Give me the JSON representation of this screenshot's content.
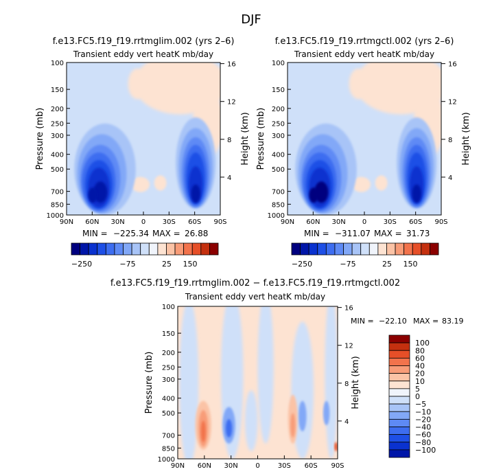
{
  "page": {
    "title": "DJF"
  },
  "colors": {
    "cold": [
      "#00007f",
      "#0016a8",
      "#0a32cf",
      "#1e4fe6",
      "#3d6df0",
      "#5e8af5",
      "#82a8f7",
      "#a8c4f7",
      "#cfe0f9"
    ],
    "zero": "#f0f4fb",
    "warm": [
      "#fde3d2",
      "#fbc3a6",
      "#f89c78",
      "#f2734c",
      "#e64f28",
      "#c4300f",
      "#8b0000"
    ]
  },
  "chart_data": [
    {
      "type": "heatmap",
      "id": "panel1",
      "title": "f.e13.FC5.f19_f19.rrtmglim.002 (yrs 2–6)",
      "subtitle": "Transient eddy vert heatK mb/day",
      "ylabel": "Pressure (mb)",
      "ylabel_right": "Height (km)",
      "x_ticks": [
        "90N",
        "60N",
        "30N",
        "0",
        "30S",
        "60S",
        "90S"
      ],
      "y_ticks": [
        "100",
        "150",
        "200",
        "250",
        "300",
        "400",
        "500",
        "700",
        "850",
        "1000"
      ],
      "y_right_ticks": [
        "16",
        "12",
        "8",
        "4"
      ],
      "stats": {
        "min_label": "MIN =",
        "min": "−225.34",
        "max_label": "MAX =",
        "max": "26.88"
      },
      "colorbar_labels": [
        "−250",
        "−75",
        "25",
        "150"
      ]
    },
    {
      "type": "heatmap",
      "id": "panel2",
      "title": "f.e13.FC5.f19_f19.rrtmgctl.002 (yrs 2–6)",
      "subtitle": "Transient eddy vert heatK mb/day",
      "ylabel": "Pressure (mb)",
      "ylabel_right": "Height (km)",
      "x_ticks": [
        "90N",
        "60N",
        "30N",
        "0",
        "30S",
        "60S",
        "90S"
      ],
      "y_ticks": [
        "100",
        "150",
        "200",
        "250",
        "300",
        "400",
        "500",
        "700",
        "850",
        "1000"
      ],
      "y_right_ticks": [
        "16",
        "12",
        "8",
        "4"
      ],
      "stats": {
        "min_label": "MIN =",
        "min": "−311.07",
        "max_label": "MAX =",
        "max": "31.73"
      },
      "colorbar_labels": [
        "−250",
        "−75",
        "25",
        "150"
      ]
    },
    {
      "type": "heatmap",
      "id": "panel3",
      "title": "f.e13.FC5.f19_f19.rrtmglim.002 − f.e13.FC5.f19_f19.rrtmgctl.002",
      "subtitle": "Transient eddy vert heatK mb/day",
      "ylabel": "Pressure (mb)",
      "ylabel_right": "Height (km)",
      "x_ticks": [
        "90N",
        "60N",
        "30N",
        "0",
        "30S",
        "60S",
        "90S"
      ],
      "y_ticks": [
        "100",
        "150",
        "200",
        "250",
        "300",
        "400",
        "500",
        "700",
        "850",
        "1000"
      ],
      "y_right_ticks": [
        "16",
        "12",
        "8",
        "4"
      ],
      "stats": {
        "min_label": "MIN =",
        "min": "−22.10",
        "max_label": "MAX =",
        "max": "83.19"
      },
      "colorbar_labels": [
        "100",
        "80",
        "60",
        "40",
        "20",
        "10",
        "5",
        "0",
        "−5",
        "−10",
        "−20",
        "−40",
        "−60",
        "−80",
        "−100"
      ]
    }
  ]
}
